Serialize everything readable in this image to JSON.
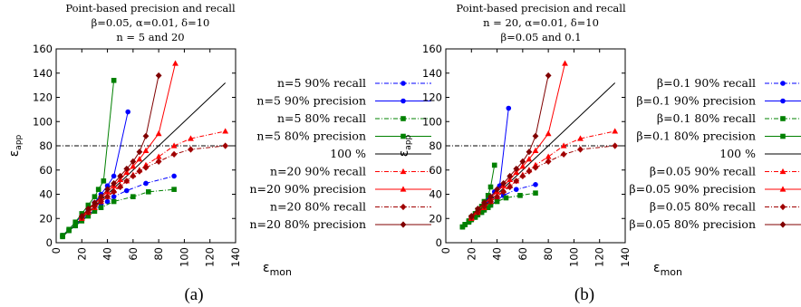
{
  "chart_data": [
    {
      "type": "line",
      "caption": "(a)",
      "title_lines": [
        "Point-based precision and recall",
        "β=0.05, α=0.01, δ=10",
        "n = 5 and 20"
      ],
      "xlabel": "ε",
      "xlabel_sub": "mon",
      "ylabel": "ε",
      "ylabel_sub": "app",
      "xlim": [
        0,
        140
      ],
      "ylim": [
        0,
        160
      ],
      "xticks": [
        0,
        20,
        40,
        60,
        80,
        100,
        120,
        140
      ],
      "yticks": [
        0,
        20,
        40,
        60,
        80,
        100,
        120,
        140,
        160
      ],
      "reference_lines": [
        {
          "kind": "horizontal",
          "y": 80,
          "style": "dash-dot",
          "color": "#000000"
        },
        {
          "kind": "diagonal",
          "name": "100 %",
          "x": [
            5,
            132
          ],
          "y": [
            5,
            132
          ],
          "color": "#000000"
        }
      ],
      "series": [
        {
          "name": "n=5 90% recall",
          "color": "#0000ff",
          "marker": "circle",
          "dash": "dashdot",
          "x": [
            5,
            10,
            15,
            20,
            25,
            30,
            35,
            40,
            45,
            55,
            70,
            92
          ],
          "y": [
            5,
            10,
            14,
            19,
            23,
            27,
            31,
            34,
            38,
            43,
            49,
            55
          ]
        },
        {
          "name": "n=5 90% precision",
          "color": "#0000ff",
          "marker": "circle",
          "dash": "solid",
          "x": [
            5,
            10,
            15,
            20,
            25,
            30,
            35,
            40,
            45,
            56
          ],
          "y": [
            6,
            11,
            17,
            22,
            27,
            33,
            40,
            47,
            55,
            108
          ]
        },
        {
          "name": "n=5 80% recall",
          "color": "#008000",
          "marker": "square",
          "dash": "dashdot",
          "x": [
            5,
            10,
            15,
            20,
            25,
            30,
            35,
            45,
            60,
            72,
            92
          ],
          "y": [
            5,
            10,
            14,
            18,
            22,
            26,
            29,
            34,
            38,
            42,
            44
          ]
        },
        {
          "name": "n=5 80% precision",
          "color": "#008000",
          "marker": "square",
          "dash": "solid",
          "x": [
            5,
            10,
            15,
            20,
            25,
            30,
            33,
            37,
            45
          ],
          "y": [
            6,
            11,
            17,
            24,
            31,
            38,
            44,
            51,
            134
          ]
        },
        {
          "name": "n=20 90% recall",
          "color": "#ff0000",
          "marker": "triangle",
          "dash": "dashdot",
          "x": [
            20,
            25,
            30,
            35,
            40,
            45,
            50,
            55,
            60,
            65,
            70,
            80,
            92,
            105,
            132
          ],
          "y": [
            20,
            25,
            29,
            34,
            38,
            43,
            47,
            51,
            56,
            60,
            64,
            71,
            80,
            86,
            92
          ]
        },
        {
          "name": "n=20 90% precision",
          "color": "#ff0000",
          "marker": "triangle",
          "dash": "solid",
          "x": [
            20,
            25,
            30,
            35,
            40,
            45,
            50,
            55,
            60,
            65,
            70,
            80,
            93
          ],
          "y": [
            21,
            27,
            32,
            37,
            42,
            47,
            52,
            58,
            63,
            69,
            76,
            90,
            148
          ]
        },
        {
          "name": "n=20 80% recall",
          "color": "#a00000",
          "marker": "diamond",
          "dash": "dashdot",
          "x": [
            20,
            25,
            30,
            35,
            40,
            45,
            50,
            55,
            60,
            65,
            70,
            80,
            92,
            105,
            132
          ],
          "y": [
            21,
            25,
            30,
            34,
            38,
            42,
            46,
            51,
            55,
            59,
            62,
            67,
            73,
            77,
            80
          ]
        },
        {
          "name": "n=20 80% precision",
          "color": "#800000",
          "marker": "diamond",
          "dash": "solid",
          "x": [
            20,
            25,
            30,
            35,
            40,
            45,
            50,
            55,
            60,
            65,
            70,
            80
          ],
          "y": [
            22,
            28,
            33,
            38,
            44,
            49,
            55,
            61,
            67,
            75,
            88,
            138
          ]
        }
      ],
      "legend_order": [
        "n=5 90% recall",
        "n=5 90% precision",
        "n=5 80% recall",
        "n=5 80% precision",
        "100 %",
        "n=20 90% recall",
        "n=20 90% precision",
        "n=20 80% recall",
        "n=20 80% precision"
      ]
    },
    {
      "type": "line",
      "caption": "(b)",
      "title_lines": [
        "Point-based precision and recall",
        "n = 20, α=0.01, δ=10",
        "β=0.05 and 0.1"
      ],
      "xlabel": "ε",
      "xlabel_sub": "mon",
      "ylabel": "ε",
      "ylabel_sub": "app",
      "xlim": [
        0,
        140
      ],
      "ylim": [
        0,
        160
      ],
      "xticks": [
        0,
        20,
        40,
        60,
        80,
        100,
        120,
        140
      ],
      "yticks": [
        0,
        20,
        40,
        60,
        80,
        100,
        120,
        140,
        160
      ],
      "reference_lines": [
        {
          "kind": "horizontal",
          "y": 80,
          "style": "dash-dot",
          "color": "#000000"
        },
        {
          "kind": "diagonal",
          "name": "100 %",
          "x": [
            13,
            132
          ],
          "y": [
            13,
            132
          ],
          "color": "#000000"
        }
      ],
      "series": [
        {
          "name": "β=0.1 90% recall",
          "color": "#0000ff",
          "marker": "circle",
          "dash": "dashdot",
          "x": [
            13,
            15,
            18,
            20,
            23,
            25,
            28,
            30,
            33,
            35,
            40,
            45,
            55,
            70
          ],
          "y": [
            13,
            15,
            17,
            19,
            21,
            23,
            25,
            27,
            29,
            31,
            35,
            39,
            44,
            48
          ]
        },
        {
          "name": "β=0.1 90% precision",
          "color": "#0000ff",
          "marker": "circle",
          "dash": "solid",
          "x": [
            13,
            15,
            18,
            20,
            23,
            25,
            28,
            30,
            33,
            35,
            38,
            42,
            49
          ],
          "y": [
            13,
            15,
            18,
            21,
            24,
            26,
            29,
            32,
            35,
            38,
            42,
            47,
            111
          ]
        },
        {
          "name": "β=0.1 80% recall",
          "color": "#008000",
          "marker": "square",
          "dash": "dashdot",
          "x": [
            13,
            15,
            18,
            20,
            23,
            25,
            28,
            30,
            33,
            35,
            40,
            47,
            58,
            70
          ],
          "y": [
            13,
            15,
            17,
            19,
            21,
            23,
            25,
            27,
            29,
            31,
            34,
            37,
            39,
            41
          ]
        },
        {
          "name": "β=0.1 80% precision",
          "color": "#008000",
          "marker": "square",
          "dash": "solid",
          "x": [
            13,
            15,
            18,
            20,
            23,
            25,
            28,
            30,
            33,
            35,
            38
          ],
          "y": [
            13,
            15,
            18,
            21,
            24,
            27,
            30,
            34,
            39,
            46,
            64
          ]
        },
        {
          "name": "β=0.05 90% recall",
          "color": "#ff0000",
          "marker": "triangle",
          "dash": "dashdot",
          "x": [
            20,
            25,
            30,
            35,
            40,
            45,
            50,
            55,
            60,
            65,
            70,
            80,
            92,
            105,
            132
          ],
          "y": [
            20,
            25,
            29,
            34,
            38,
            43,
            47,
            51,
            56,
            60,
            64,
            71,
            80,
            86,
            92
          ]
        },
        {
          "name": "β=0.05 90% precision",
          "color": "#ff0000",
          "marker": "triangle",
          "dash": "solid",
          "x": [
            20,
            25,
            30,
            35,
            40,
            45,
            50,
            55,
            60,
            65,
            70,
            80,
            93
          ],
          "y": [
            21,
            27,
            32,
            37,
            42,
            47,
            52,
            58,
            63,
            69,
            76,
            90,
            148
          ]
        },
        {
          "name": "β=0.05 80% recall",
          "color": "#a00000",
          "marker": "diamond",
          "dash": "dashdot",
          "x": [
            20,
            25,
            30,
            35,
            40,
            45,
            50,
            55,
            60,
            65,
            70,
            80,
            92,
            105,
            132
          ],
          "y": [
            21,
            25,
            30,
            34,
            38,
            42,
            46,
            51,
            55,
            59,
            62,
            67,
            73,
            77,
            80
          ]
        },
        {
          "name": "β=0.05 80% precision",
          "color": "#800000",
          "marker": "diamond",
          "dash": "solid",
          "x": [
            20,
            25,
            30,
            35,
            40,
            45,
            50,
            55,
            60,
            65,
            70,
            80
          ],
          "y": [
            22,
            28,
            33,
            38,
            44,
            49,
            55,
            61,
            67,
            75,
            88,
            138
          ]
        }
      ],
      "legend_order": [
        "β=0.1 90% recall",
        "β=0.1 90% precision",
        "β=0.1 80% recall",
        "β=0.1 80% precision",
        "100 %",
        "β=0.05 90% recall",
        "β=0.05 90% precision",
        "β=0.05 80% recall",
        "β=0.05 80% precision"
      ]
    }
  ]
}
